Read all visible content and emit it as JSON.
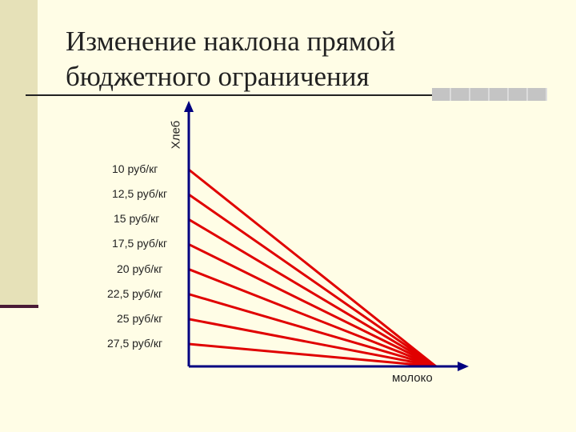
{
  "title": {
    "line1": "Изменение наклона прямой",
    "line2": "бюджетного ограничения"
  },
  "chart_data": {
    "type": "line",
    "xlabel": "молоко",
    "ylabel": "Хлеб",
    "lines_color": "#e00000",
    "axis_color": "#000080",
    "prices": [
      "10 руб/кг",
      "12,5 руб/кг",
      "15 руб/кг",
      "17,5 руб/кг",
      "20 руб/кг",
      "22,5 руб/кг",
      "25 руб/кг",
      "27,5 руб/кг"
    ]
  }
}
